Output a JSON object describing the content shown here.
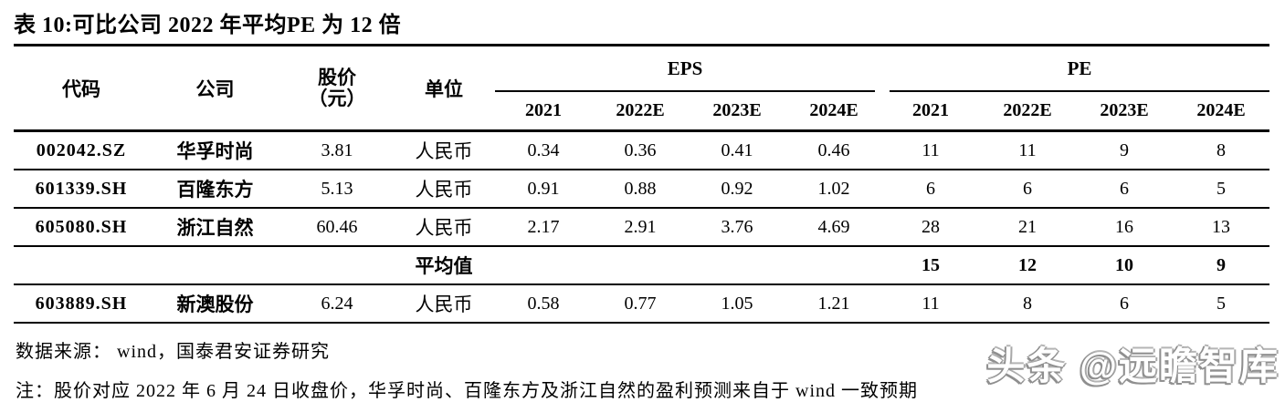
{
  "title": "表 10:可比公司 2022 年平均PE 为 12 倍",
  "table": {
    "col_headers": {
      "code": "代码",
      "company": "公司",
      "price_line1": "股价",
      "price_line2": "（元）",
      "unit": "单位"
    },
    "groups": {
      "eps": "EPS",
      "pe": "PE"
    },
    "years": [
      "2021",
      "2022E",
      "2023E",
      "2024E",
      "2021",
      "2022E",
      "2023E",
      "2024E"
    ],
    "rows": [
      {
        "emphasis": false,
        "cells": [
          "002042.SZ",
          "华孚时尚",
          "3.81",
          "人民币",
          "0.34",
          "0.36",
          "0.41",
          "0.46",
          "11",
          "11",
          "9",
          "8"
        ]
      },
      {
        "emphasis": false,
        "cells": [
          "601339.SH",
          "百隆东方",
          "5.13",
          "人民币",
          "0.91",
          "0.88",
          "0.92",
          "1.02",
          "6",
          "6",
          "6",
          "5"
        ]
      },
      {
        "emphasis": false,
        "cells": [
          "605080.SH",
          "浙江自然",
          "60.46",
          "人民币",
          "2.17",
          "2.91",
          "3.76",
          "4.69",
          "28",
          "21",
          "16",
          "13"
        ]
      },
      {
        "emphasis": true,
        "cells": [
          "",
          "",
          "",
          "平均值",
          "",
          "",
          "",
          "",
          "15",
          "12",
          "10",
          "9"
        ]
      },
      {
        "emphasis": false,
        "cells": [
          "603889.SH",
          "新澳股份",
          "6.24",
          "人民币",
          "0.58",
          "0.77",
          "1.05",
          "1.21",
          "11",
          "8",
          "6",
          "5"
        ]
      }
    ]
  },
  "source": "数据来源： wind，国泰君安证券研究",
  "note": "注：股价对应 2022 年 6 月 24 日收盘价，华孚时尚、百隆东方及浙江自然的盈利预测来自于 wind 一致预期",
  "watermark": {
    "brand": "头条",
    "handle": "@远瞻智库"
  },
  "colors": {
    "text": "#000000",
    "watermark_outline": "#8f8f8f",
    "background": "#ffffff"
  }
}
